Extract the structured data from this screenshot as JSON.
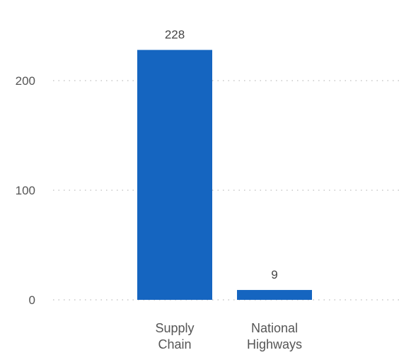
{
  "chart_data": {
    "type": "bar",
    "categories": [
      "Supply Chain",
      "National Highways"
    ],
    "category_label_lines": [
      [
        "Supply",
        "Chain"
      ],
      [
        "National",
        "Highways"
      ]
    ],
    "values": [
      228,
      9
    ],
    "data_labels": [
      "228",
      "9"
    ],
    "yticks": [
      0,
      100,
      200
    ],
    "ylim": [
      0,
      240
    ],
    "grid": true,
    "bar_color": "#1565C0",
    "grid_color": "#c8c8c8"
  }
}
